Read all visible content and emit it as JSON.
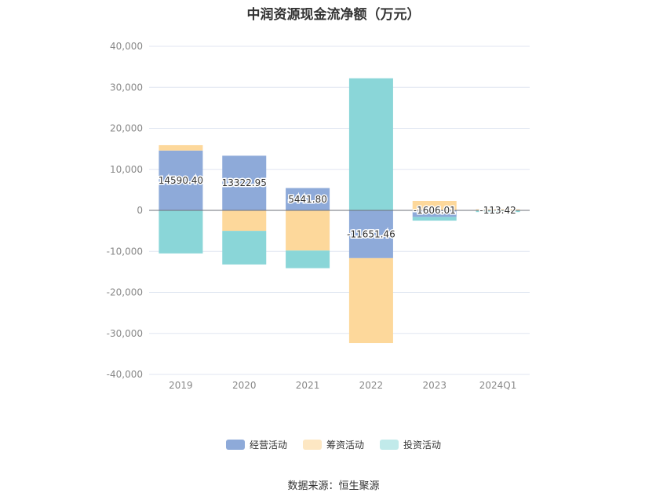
{
  "chart_data": {
    "type": "bar",
    "stacked": true,
    "title": "中润资源现金流净额（万元）",
    "categories": [
      "2019",
      "2020",
      "2021",
      "2022",
      "2023",
      "2024Q1"
    ],
    "ylim": [
      -40000,
      40000
    ],
    "yticks": [
      40000,
      30000,
      20000,
      10000,
      0,
      -10000,
      -20000,
      -30000,
      -40000
    ],
    "ytick_labels": [
      "40,000",
      "30,000",
      "20,000",
      "10,000",
      "0",
      "-10,000",
      "-20,000",
      "-30,000",
      "-40,000"
    ],
    "grid": true,
    "legend_position": "bottom",
    "series": [
      {
        "name": "经营活动",
        "color": "#8eaad9",
        "values": [
          14590.4,
          13322.95,
          5441.8,
          -11651.46,
          -1606.01,
          -113.42
        ]
      },
      {
        "name": "筹资活动",
        "color": "#fdd89b",
        "values": [
          1300,
          -5000,
          -9800,
          -20700,
          2300,
          250
        ]
      },
      {
        "name": "投资活动",
        "color": "#8ad6d8",
        "values": [
          -10500,
          -8200,
          -4300,
          32200,
          -900,
          -300
        ]
      }
    ],
    "data_labels": [
      "14590.40",
      "13322.95",
      "5441.80",
      "-11651.46",
      "-1606.01",
      "-113.42"
    ]
  },
  "source_note": "数据来源：恒生聚源"
}
